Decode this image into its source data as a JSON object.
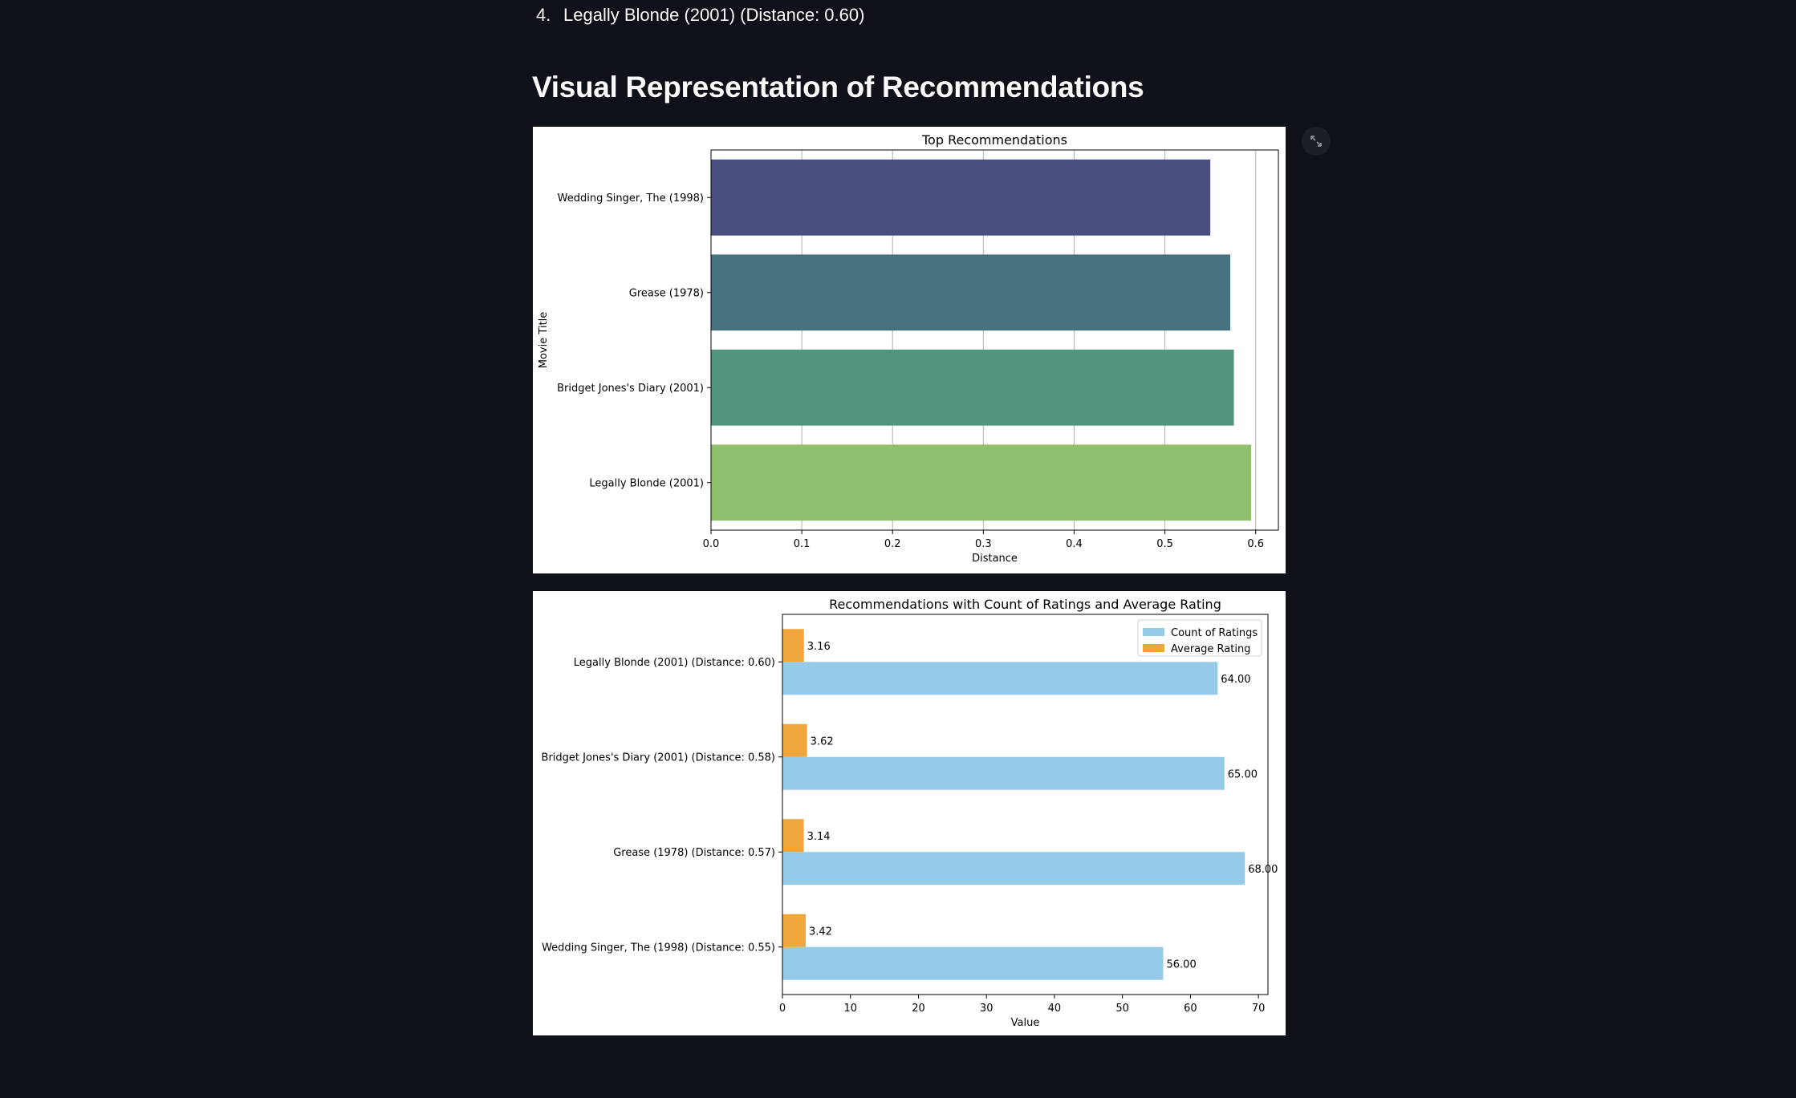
{
  "list_item": {
    "number": "4.",
    "text": "Legally Blonde (2001) (Distance: 0.60)"
  },
  "section_title": "Visual Representation of Recommendations",
  "expand_icon": "fullscreen-expand-icon",
  "chart_data": [
    {
      "type": "bar",
      "orientation": "horizontal",
      "title": "Top Recommendations",
      "xlabel": "Distance",
      "ylabel": "Movie Title",
      "categories": [
        "Wedding Singer, The (1998)",
        "Grease (1978)",
        "Bridget Jones's Diary (2001)",
        "Legally Blonde (2001)"
      ],
      "values": [
        0.55,
        0.572,
        0.576,
        0.595
      ],
      "colors": [
        "#4b4f80",
        "#46717f",
        "#52957c",
        "#8fc06e"
      ],
      "xlim": [
        0,
        0.625
      ],
      "xticks": [
        "0.0",
        "0.1",
        "0.2",
        "0.3",
        "0.4",
        "0.5",
        "0.6"
      ],
      "grid": "vertical"
    },
    {
      "type": "bar",
      "orientation": "horizontal",
      "title": "Recommendations with Count of Ratings and Average Rating",
      "xlabel": "Value",
      "categories": [
        "Legally Blonde (2001) (Distance: 0.60)",
        "Bridget Jones's Diary (2001) (Distance: 0.58)",
        "Grease (1978) (Distance: 0.57)",
        "Wedding Singer, The (1998) (Distance: 0.55)"
      ],
      "series": [
        {
          "name": "Count of Ratings",
          "color": "#95cbe8",
          "values": [
            64,
            65,
            68,
            56
          ],
          "labels": [
            "64.00",
            "65.00",
            "68.00",
            "56.00"
          ]
        },
        {
          "name": "Average Rating",
          "color": "#efa73c",
          "values": [
            3.16,
            3.62,
            3.14,
            3.42
          ],
          "labels": [
            "3.16",
            "3.62",
            "3.14",
            "3.42"
          ]
        }
      ],
      "xlim": [
        0,
        71.4
      ],
      "xticks": [
        "0",
        "10",
        "20",
        "30",
        "40",
        "50",
        "60",
        "70"
      ],
      "legend": "top-right",
      "grid": "none"
    }
  ]
}
